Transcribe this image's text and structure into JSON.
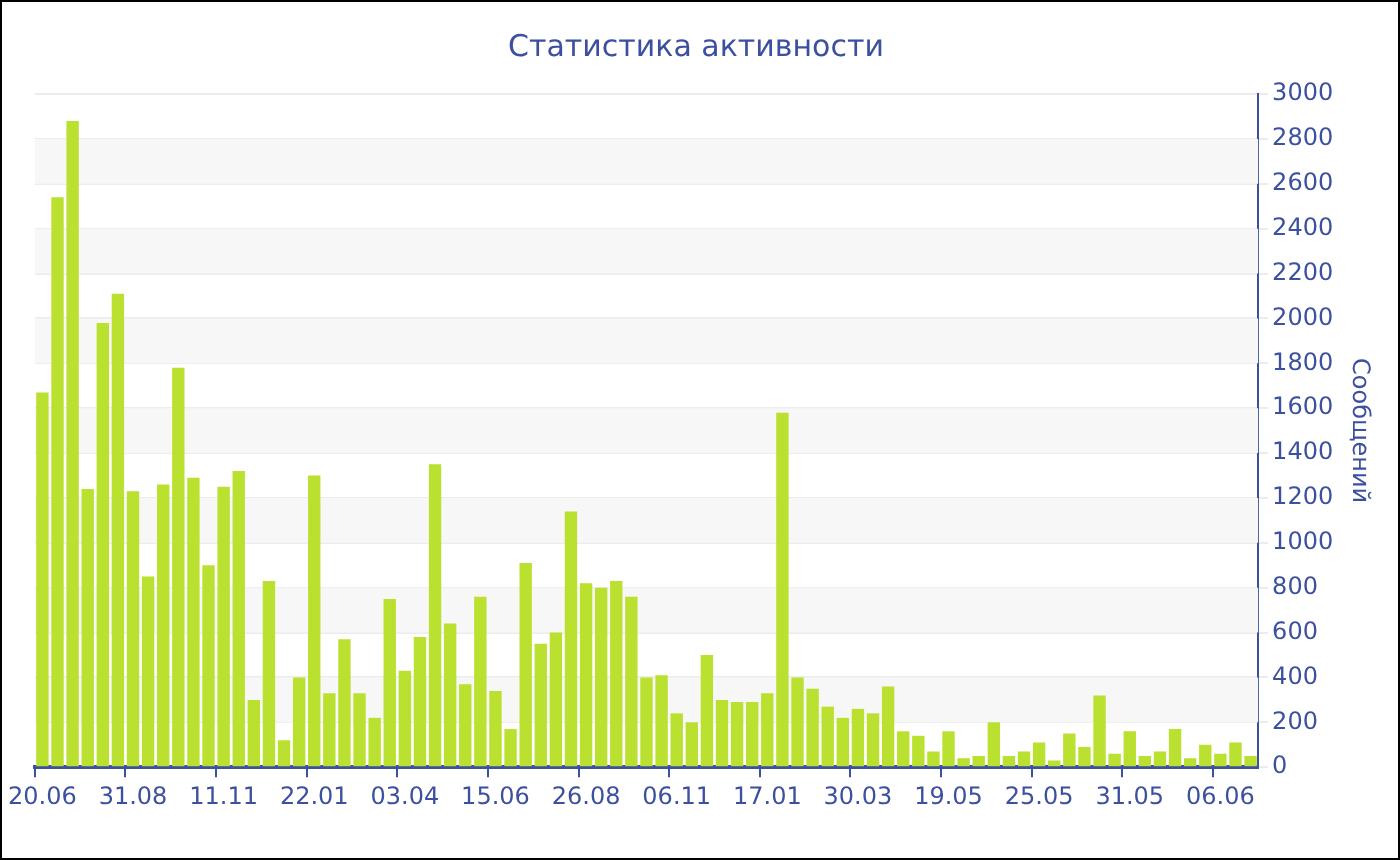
{
  "chart_data": {
    "type": "bar",
    "title": "Статистика активности",
    "ylabel": "Сообщений",
    "categories": [
      "20.06",
      null,
      null,
      null,
      null,
      null,
      "31.08",
      null,
      null,
      null,
      null,
      null,
      "11.11",
      null,
      null,
      null,
      null,
      null,
      "22.01",
      null,
      null,
      null,
      null,
      null,
      "03.04",
      null,
      null,
      null,
      null,
      null,
      "15.06",
      null,
      null,
      null,
      null,
      null,
      "26.08",
      null,
      null,
      null,
      null,
      null,
      "06.11",
      null,
      null,
      null,
      null,
      null,
      "17.01",
      null,
      null,
      null,
      null,
      null,
      "30.03",
      null,
      null,
      null,
      null,
      null,
      "19.05",
      null,
      null,
      null,
      null,
      null,
      "25.05",
      null,
      null,
      null,
      null,
      null,
      "31.05",
      null,
      null,
      null,
      null,
      null,
      "06.06",
      null,
      null
    ],
    "values": [
      1670,
      2540,
      2880,
      1240,
      1980,
      2110,
      1230,
      850,
      1260,
      1780,
      1290,
      900,
      1250,
      1320,
      300,
      830,
      120,
      400,
      1300,
      330,
      570,
      330,
      220,
      750,
      430,
      580,
      1350,
      640,
      370,
      760,
      340,
      170,
      910,
      550,
      600,
      1140,
      820,
      800,
      830,
      760,
      400,
      410,
      240,
      200,
      500,
      300,
      290,
      290,
      330,
      1580,
      400,
      350,
      270,
      220,
      260,
      240,
      360,
      160,
      140,
      70,
      160,
      40,
      50,
      200,
      50,
      70,
      110,
      30,
      150,
      90,
      320,
      60,
      160,
      50,
      70,
      170,
      40,
      100,
      60,
      110,
      50
    ],
    "color": "#bae030",
    "ylim": [
      0,
      3000
    ],
    "yticks": [
      0,
      200,
      400,
      600,
      800,
      1000,
      1200,
      1400,
      1600,
      1800,
      2000,
      2200,
      2400,
      2600,
      2800,
      3000
    ],
    "grid": true,
    "legend": false
  }
}
